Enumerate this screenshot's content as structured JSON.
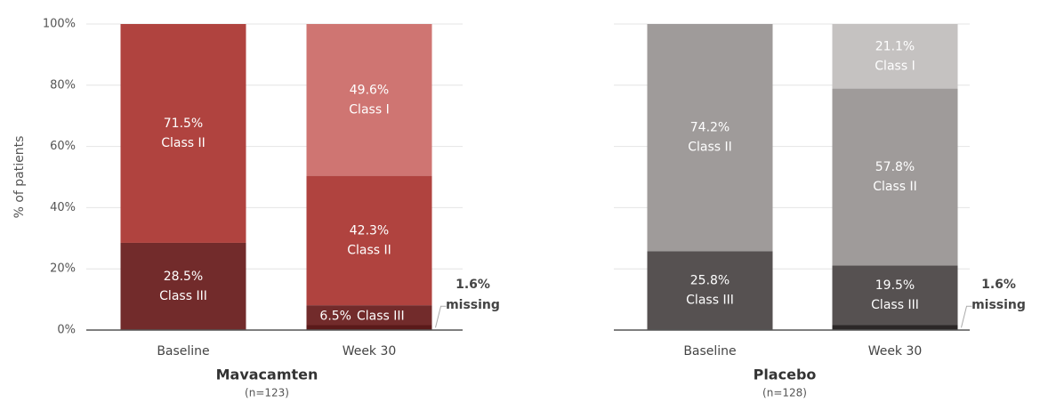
{
  "chart_data": [
    {
      "type": "bar",
      "stacked": true,
      "title": "Mavacamten",
      "subtitle": "(n=123)",
      "ylabel": "% of patients",
      "categories": [
        "Baseline",
        "Week 30"
      ],
      "ylim": [
        0,
        100
      ],
      "yticks": [
        {
          "value": 0,
          "label": "0%"
        },
        {
          "value": 20,
          "label": "20%"
        },
        {
          "value": 40,
          "label": "40%"
        },
        {
          "value": 60,
          "label": "60%"
        },
        {
          "value": 80,
          "label": "80%"
        },
        {
          "value": 100,
          "label": "100%"
        }
      ],
      "grid": true,
      "series": [
        {
          "name": "missing",
          "color": "#5a1a1a",
          "values": [
            0,
            1.6
          ],
          "value_labels": [
            null,
            "1.6%"
          ]
        },
        {
          "name": "Class III",
          "color": "#722b2b",
          "values": [
            28.5,
            6.5
          ],
          "value_labels": [
            "28.5%",
            "6.5%"
          ]
        },
        {
          "name": "Class II",
          "color": "#b0433f",
          "values": [
            71.5,
            42.3
          ],
          "value_labels": [
            "71.5%",
            "42.3%"
          ]
        },
        {
          "name": "Class I",
          "color": "#cf7572",
          "values": [
            0,
            49.6
          ],
          "value_labels": [
            null,
            "49.6%"
          ]
        }
      ]
    },
    {
      "type": "bar",
      "stacked": true,
      "title": "Placebo",
      "subtitle": "(n=128)",
      "categories": [
        "Baseline",
        "Week 30"
      ],
      "ylim": [
        0,
        100
      ],
      "yticks": [
        0,
        20,
        40,
        60,
        80,
        100
      ],
      "grid": true,
      "series": [
        {
          "name": "missing",
          "color": "#2b2727",
          "values": [
            0,
            1.6
          ],
          "value_labels": [
            null,
            "1.6%"
          ]
        },
        {
          "name": "Class III",
          "color": "#565151",
          "values": [
            25.8,
            19.5
          ],
          "value_labels": [
            "25.8%",
            "19.5%"
          ]
        },
        {
          "name": "Class II",
          "color": "#9f9b9a",
          "values": [
            74.2,
            57.8
          ],
          "value_labels": [
            "74.2%",
            "57.8%"
          ]
        },
        {
          "name": "Class I",
          "color": "#c5c2c1",
          "values": [
            0,
            21.1
          ],
          "value_labels": [
            null,
            "21.1%"
          ]
        }
      ]
    }
  ]
}
